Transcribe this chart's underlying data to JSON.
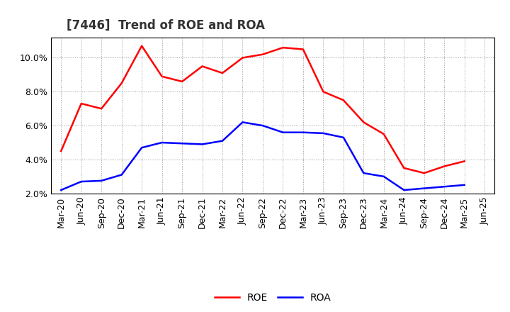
{
  "title": "[7446]  Trend of ROE and ROA",
  "x_labels": [
    "Mar-20",
    "Jun-20",
    "Sep-20",
    "Dec-20",
    "Mar-21",
    "Jun-21",
    "Sep-21",
    "Dec-21",
    "Mar-22",
    "Jun-22",
    "Sep-22",
    "Dec-22",
    "Mar-23",
    "Jun-23",
    "Sep-23",
    "Dec-23",
    "Mar-24",
    "Jun-24",
    "Sep-24",
    "Dec-24",
    "Mar-25",
    "Jun-25"
  ],
  "roe": [
    4.5,
    7.3,
    7.0,
    8.5,
    10.7,
    8.9,
    8.6,
    9.5,
    9.1,
    10.0,
    10.2,
    10.6,
    10.5,
    8.0,
    7.5,
    6.2,
    5.5,
    3.5,
    3.2,
    3.6,
    3.9,
    null
  ],
  "roa": [
    2.2,
    2.7,
    2.75,
    3.1,
    4.7,
    5.0,
    4.95,
    4.9,
    5.1,
    6.2,
    6.0,
    5.6,
    5.6,
    5.55,
    5.3,
    3.2,
    3.0,
    2.2,
    2.3,
    2.4,
    2.5,
    null
  ],
  "roe_color": "#ff0000",
  "roa_color": "#0000ff",
  "ylim": [
    2.0,
    11.2
  ],
  "yticks": [
    2.0,
    4.0,
    6.0,
    8.0,
    10.0
  ],
  "background_color": "#ffffff",
  "grid_color": "#999999",
  "line_width": 1.8,
  "title_fontsize": 12,
  "tick_fontsize": 9
}
